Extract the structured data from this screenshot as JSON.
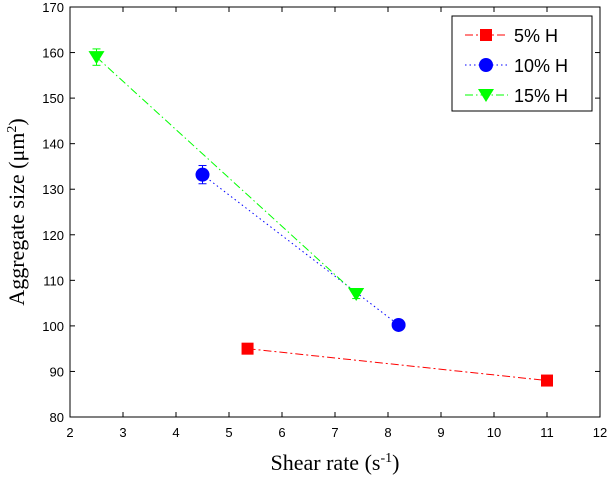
{
  "chart_data": {
    "type": "line",
    "title": "",
    "xlabel": "Shear rate (s",
    "xlabel_sup": "-1",
    "xlabel_end": ")",
    "ylabel": "Aggregate size (μm",
    "ylabel_sup": "2",
    "ylabel_end": ")",
    "xlim": [
      2,
      12
    ],
    "ylim": [
      80,
      170
    ],
    "xticks": [
      "2",
      "3",
      "4",
      "5",
      "6",
      "7",
      "8",
      "9",
      "10",
      "11",
      "12"
    ],
    "yticks": [
      "80",
      "90",
      "100",
      "110",
      "120",
      "130",
      "140",
      "150",
      "160",
      "170"
    ],
    "grid": false,
    "legend_position": "top-right",
    "series": [
      {
        "name": "5% H",
        "color": "#ff0000",
        "marker": "square",
        "dash": "8,3,2,3",
        "x": [
          5.35,
          11.0
        ],
        "y": [
          95,
          88
        ],
        "err": [
          0.5,
          0.5
        ]
      },
      {
        "name": "10% H",
        "color": "#0000ff",
        "marker": "circle",
        "dash": "1.5,3",
        "x": [
          4.5,
          8.2
        ],
        "y": [
          133.2,
          100.2
        ],
        "err": [
          2,
          1
        ]
      },
      {
        "name": "15% H",
        "color": "#00ff00",
        "marker": "triangle-down",
        "dash": "8,3,1.5,3",
        "x": [
          2.5,
          7.4
        ],
        "y": [
          159,
          107
        ],
        "err": [
          1.8,
          1
        ]
      }
    ]
  }
}
